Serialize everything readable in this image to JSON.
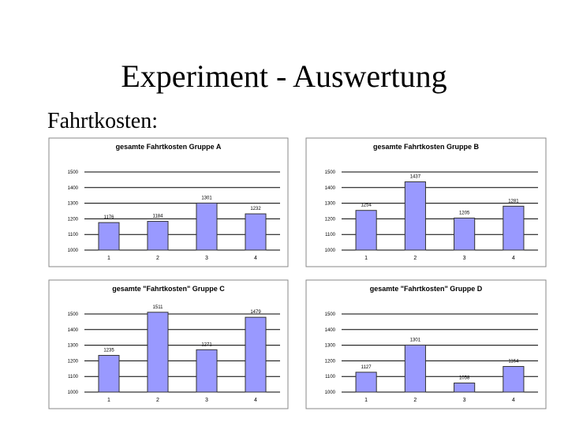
{
  "slide": {
    "title": "Experiment - Auswertung",
    "heading": "Fahrtkosten:"
  },
  "chart_data": [
    {
      "type": "bar",
      "title": "gesamte Fahrtkosten Gruppe A",
      "categories": [
        "1",
        "2",
        "3",
        "4"
      ],
      "values": [
        1176,
        1184,
        1301,
        1232
      ],
      "color": "#9999ff",
      "ylim": [
        1000,
        1500
      ],
      "yticks": [
        1000,
        1100,
        1200,
        1300,
        1400,
        1500
      ],
      "grid": true
    },
    {
      "type": "bar",
      "title": "gesamte Fahrtkosten Gruppe B",
      "categories": [
        "1",
        "2",
        "3",
        "4"
      ],
      "values": [
        1254,
        1437,
        1205,
        1281
      ],
      "color": "#9999ff",
      "ylim": [
        1000,
        1500
      ],
      "yticks": [
        1000,
        1100,
        1200,
        1300,
        1400,
        1500
      ],
      "grid": true
    },
    {
      "type": "bar",
      "title": "gesamte \"Fahrtkosten\" Gruppe C",
      "categories": [
        "1",
        "2",
        "3",
        "4"
      ],
      "values": [
        1235,
        1511,
        1271,
        1479
      ],
      "color": "#9999ff",
      "ylim": [
        1000,
        1500
      ],
      "yticks": [
        1000,
        1100,
        1200,
        1300,
        1400,
        1500
      ],
      "grid": true
    },
    {
      "type": "bar",
      "title": "gesamte \"Fahrtkosten\" Gruppe D",
      "categories": [
        "1",
        "2",
        "3",
        "4"
      ],
      "values": [
        1127,
        1301,
        1058,
        1164
      ],
      "color": "#9999ff",
      "ylim": [
        1000,
        1500
      ],
      "yticks": [
        1000,
        1100,
        1200,
        1300,
        1400,
        1500
      ],
      "grid": true
    }
  ]
}
